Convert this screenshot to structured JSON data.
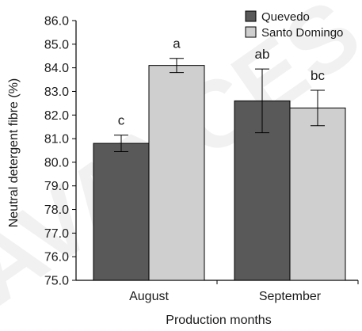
{
  "chart_data": {
    "type": "bar",
    "categories": [
      "August",
      "September"
    ],
    "series": [
      {
        "name": "Quevedo",
        "color": "#595959",
        "values": [
          80.8,
          82.6
        ],
        "err": [
          0.35,
          1.35
        ],
        "letters": [
          "c",
          "ab"
        ]
      },
      {
        "name": "Santo Domingo",
        "color": "#cfcfcf",
        "values": [
          84.1,
          82.3
        ],
        "err": [
          0.3,
          0.75
        ],
        "letters": [
          "a",
          "bc"
        ]
      }
    ],
    "xlabel": "Production months",
    "ylabel": "Neutral detergent fibre (%)",
    "ylim": [
      75.0,
      86.0
    ],
    "yticks": [
      "75.0",
      "76.0",
      "77.0",
      "78.0",
      "79.0",
      "80.0",
      "81.0",
      "82.0",
      "83.0",
      "84.0",
      "85.0",
      "86.0"
    ],
    "legend_position": "top-right",
    "grid": false
  },
  "watermark": "AVANCES"
}
